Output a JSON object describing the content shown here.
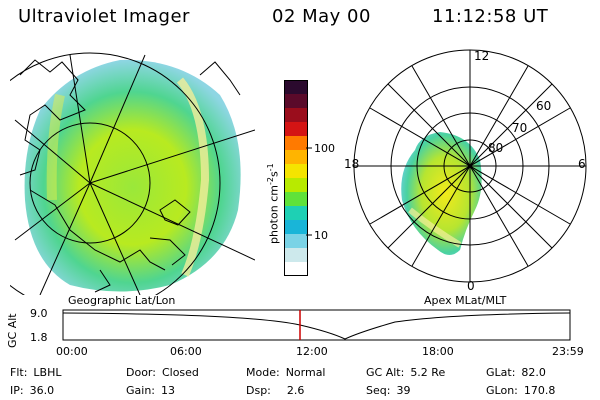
{
  "header": {
    "instrument": "Ultraviolet Imager",
    "date": "02 May 00",
    "time": "11:12:58 UT"
  },
  "colorbar": {
    "label": "photon cm",
    "label_sup1": "-2",
    "label_mid": "s",
    "label_sup2": "-1",
    "ticks": [
      "100",
      "10"
    ],
    "colors": [
      "#2b0a2e",
      "#5a0a2a",
      "#9a0d1c",
      "#d41414",
      "#ff7a00",
      "#ffb400",
      "#f5e400",
      "#b8ea00",
      "#5fe23a",
      "#1ed0b4",
      "#19b5d8",
      "#7ad3e6",
      "#cde9ec",
      "#ffffff"
    ]
  },
  "left_panel": {
    "label": "Geographic Lat/Lon"
  },
  "right_panel": {
    "label": "Apex MLat/MLT",
    "mlt_labels": {
      "top": "12",
      "bottom": "0",
      "left": "18",
      "right": "6"
    },
    "lat_labels": [
      "60",
      "70",
      "80"
    ]
  },
  "altitude_plot": {
    "ylabel": "GC Alt",
    "yticks": [
      "9.0",
      "1.8"
    ],
    "xticks": [
      "00:00",
      "06:00",
      "12:00",
      "18:00",
      "23:59"
    ],
    "current_time_hours": 11.22,
    "current_time_color": "#cc0000"
  },
  "info": {
    "filter_label": "Flt:",
    "filter": "LBHL",
    "ip_label": "IP:",
    "ip": "36.0",
    "door_label": "Door:",
    "door": "Closed",
    "gain_label": "Gain:",
    "gain": "13",
    "mode_label": "Mode:",
    "mode": "Normal",
    "dsp_label": "Dsp:",
    "dsp": "2.6",
    "gcalt_label": "GC Alt:",
    "gcalt": "5.2 Re",
    "seq_label": "Seq:",
    "seq": "39",
    "glat_label": "GLat:",
    "glat": "82.0",
    "glon_label": "GLon:",
    "glon": "170.8"
  }
}
